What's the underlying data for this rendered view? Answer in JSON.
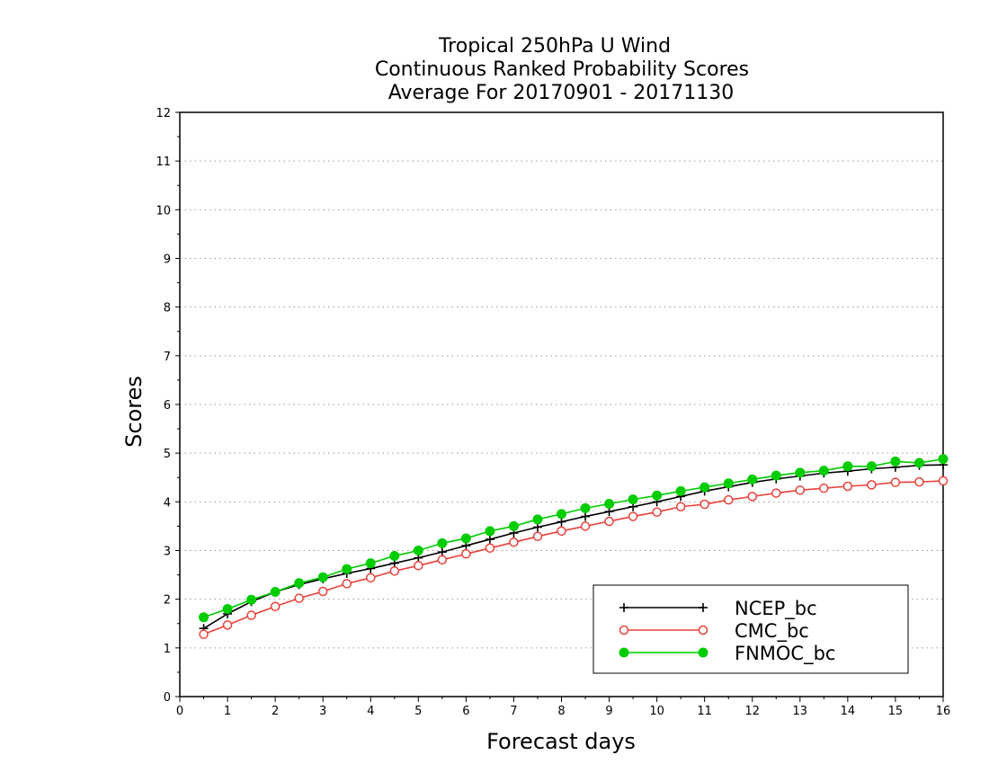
{
  "chart_data": {
    "type": "line",
    "title_lines": [
      "Tropical 250hPa U Wind",
      "Continuous Ranked Probability Scores",
      "Average For 20170901 - 20171130"
    ],
    "xlabel": "Forecast days",
    "ylabel": "Scores",
    "xlim": [
      0,
      16
    ],
    "ylim": [
      0,
      12
    ],
    "x_ticks": [
      "0",
      "1",
      "2",
      "3",
      "4",
      "5",
      "6",
      "7",
      "8",
      "9",
      "10",
      "11",
      "12",
      "13",
      "14",
      "15",
      "16"
    ],
    "y_ticks": [
      "0",
      "1",
      "2",
      "3",
      "4",
      "5",
      "6",
      "7",
      "8",
      "9",
      "10",
      "11",
      "12"
    ],
    "grid": "horizontal dotted",
    "legend_position": "bottom-right",
    "x": [
      0.5,
      1,
      1.5,
      2,
      2.5,
      3,
      3.5,
      4,
      4.5,
      5,
      5.5,
      6,
      6.5,
      7,
      7.5,
      8,
      8.5,
      9,
      9.5,
      10,
      10.5,
      11,
      11.5,
      12,
      12.5,
      13,
      13.5,
      14,
      14.5,
      15,
      15.5,
      16
    ],
    "series": [
      {
        "name": "NCEP_bc",
        "color": "#000000",
        "marker": "plus",
        "values": [
          1.4,
          1.7,
          1.95,
          2.15,
          2.3,
          2.42,
          2.53,
          2.63,
          2.74,
          2.85,
          2.97,
          3.1,
          3.23,
          3.36,
          3.48,
          3.59,
          3.7,
          3.8,
          3.9,
          4.0,
          4.11,
          4.22,
          4.31,
          4.4,
          4.47,
          4.53,
          4.59,
          4.63,
          4.68,
          4.71,
          4.75,
          4.76
        ]
      },
      {
        "name": "CMC_bc",
        "color": "#e8403a",
        "marker": "open-circle",
        "values": [
          1.28,
          1.47,
          1.67,
          1.85,
          2.02,
          2.16,
          2.32,
          2.44,
          2.58,
          2.69,
          2.81,
          2.93,
          3.05,
          3.17,
          3.29,
          3.4,
          3.5,
          3.6,
          3.7,
          3.79,
          3.9,
          3.95,
          4.04,
          4.11,
          4.18,
          4.24,
          4.28,
          4.32,
          4.35,
          4.4,
          4.41,
          4.43
        ]
      },
      {
        "name": "FNMOC_bc",
        "color": "#00cc00",
        "marker": "filled-circle",
        "values": [
          1.63,
          1.8,
          1.99,
          2.15,
          2.33,
          2.45,
          2.62,
          2.74,
          2.89,
          3.0,
          3.15,
          3.25,
          3.4,
          3.5,
          3.64,
          3.75,
          3.87,
          3.96,
          4.05,
          4.13,
          4.22,
          4.3,
          4.38,
          4.46,
          4.54,
          4.6,
          4.64,
          4.73,
          4.73,
          4.83,
          4.8,
          4.88
        ]
      }
    ]
  }
}
